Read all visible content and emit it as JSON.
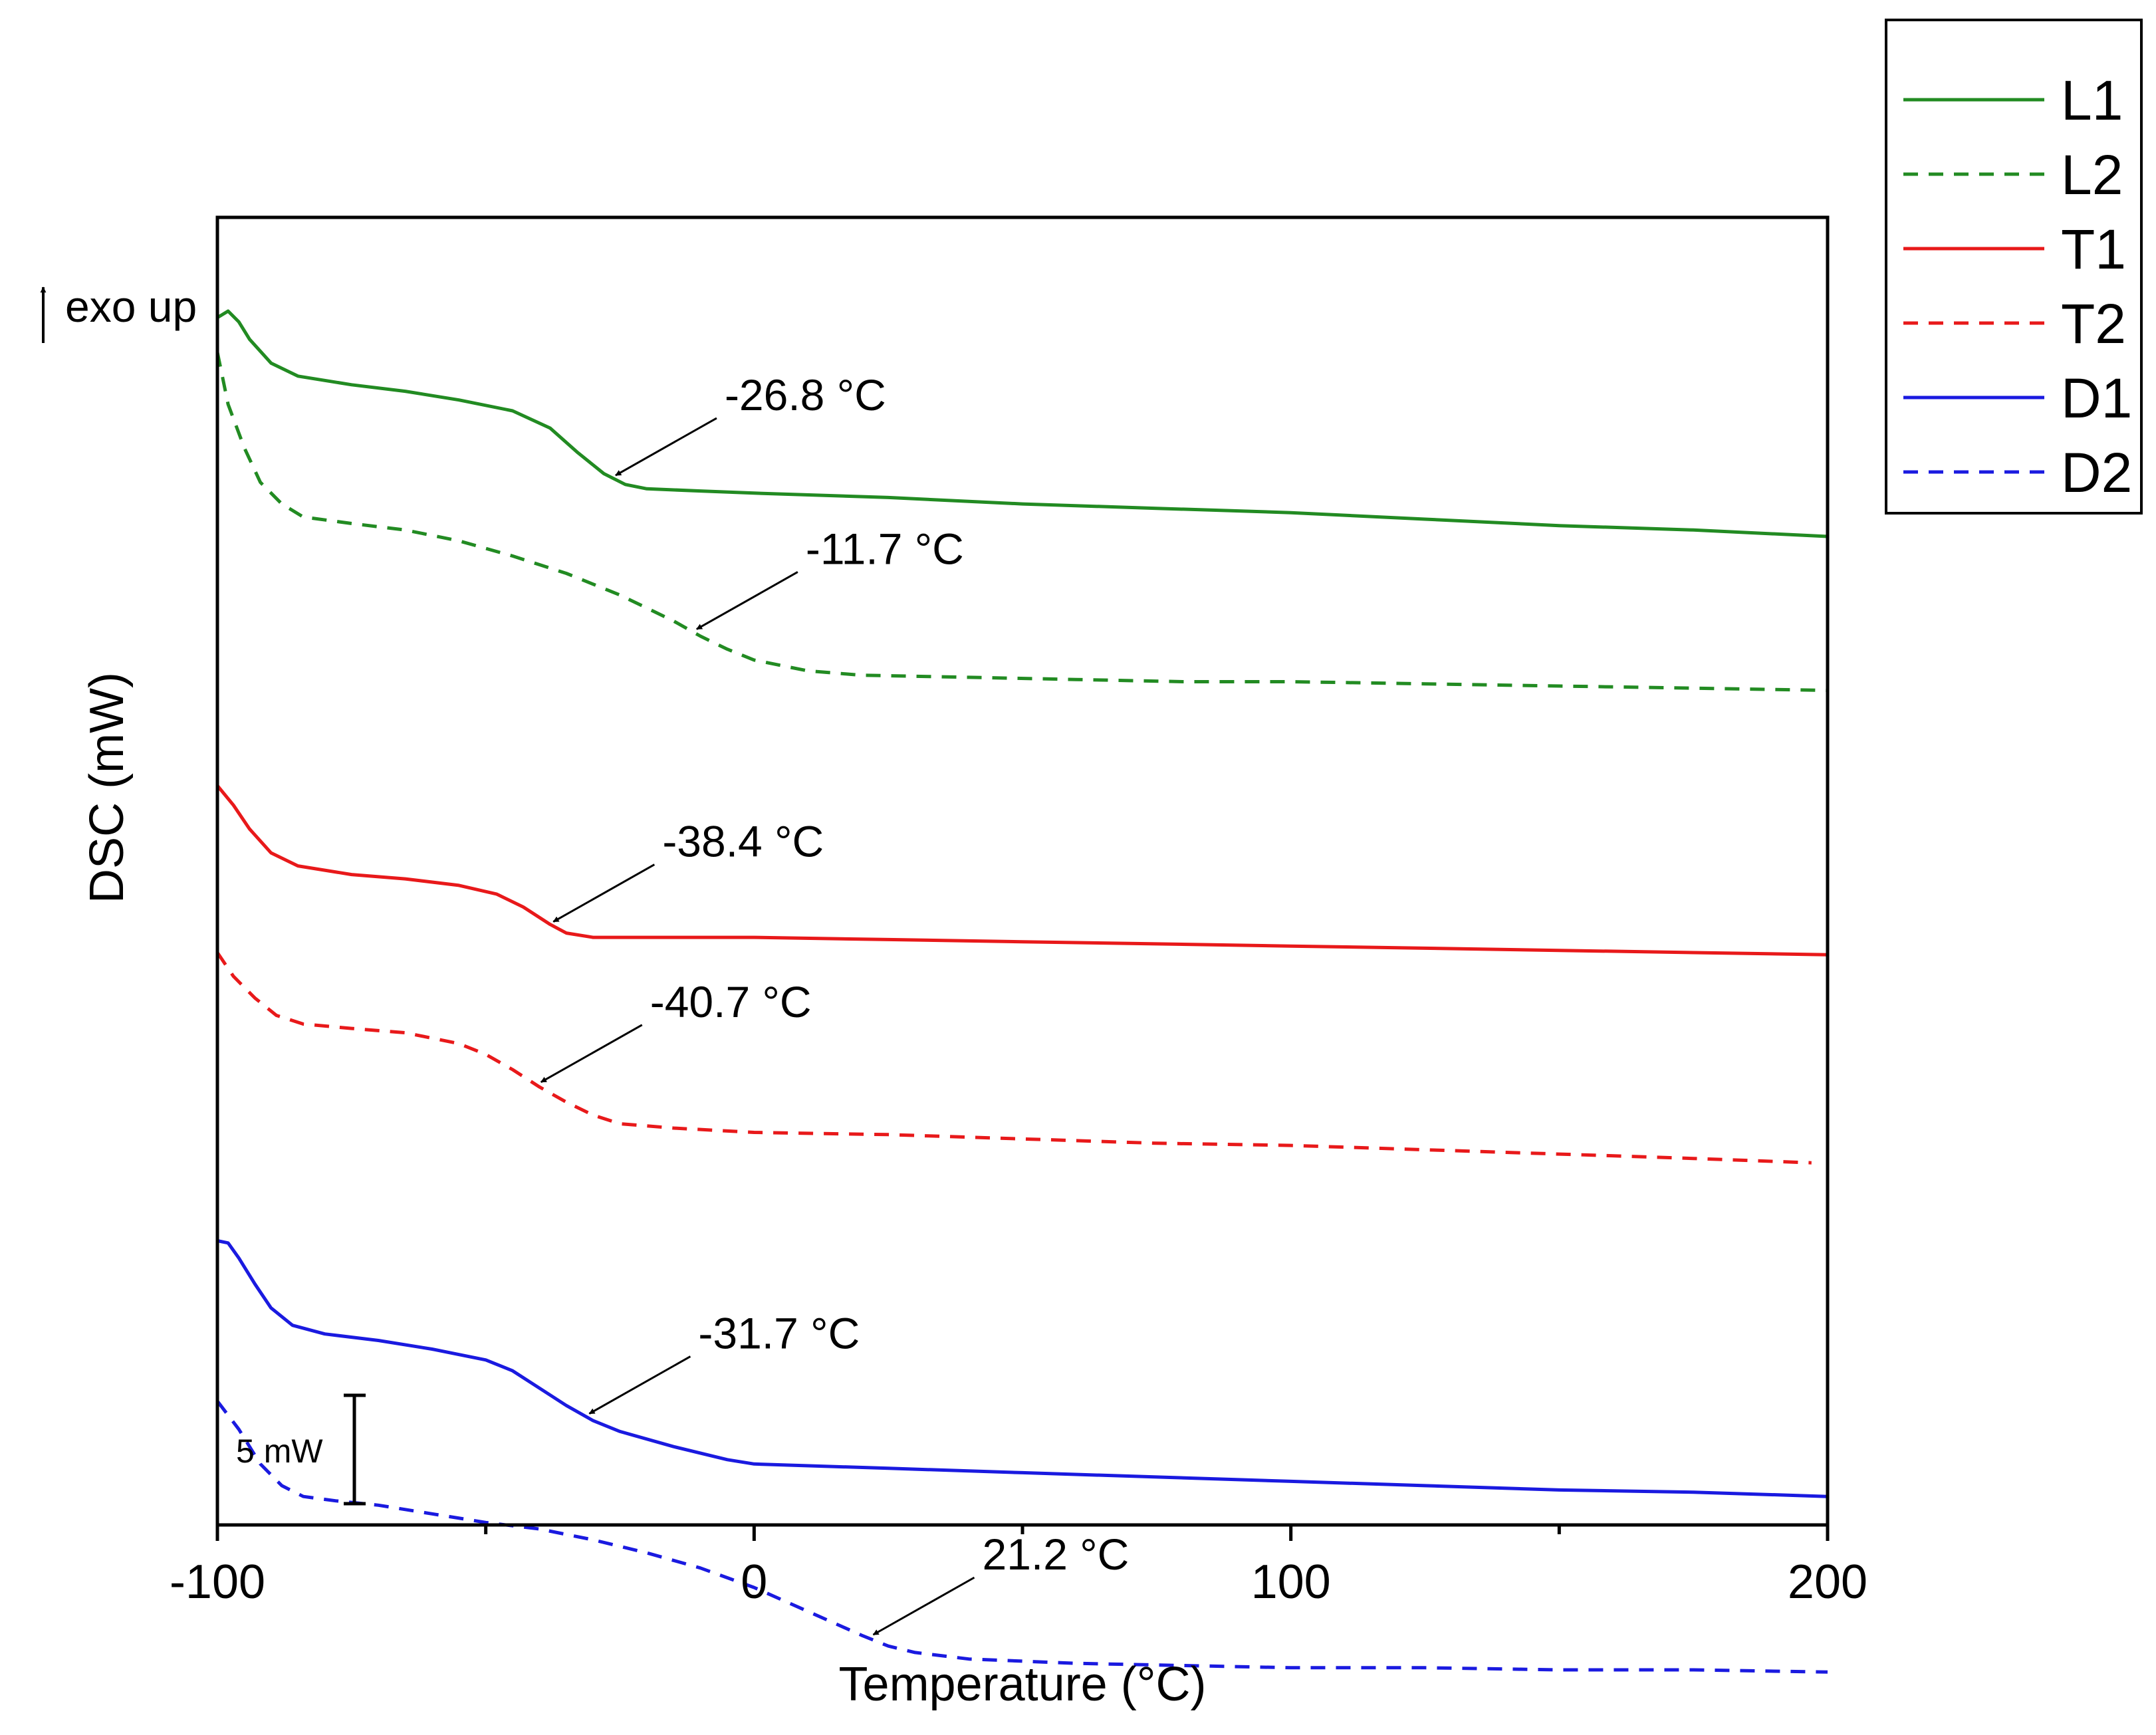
{
  "chart_data": {
    "type": "line",
    "title": "",
    "xlabel": "Temperature (°C)",
    "ylabel": "DSC (mW)",
    "xlim": [
      -100,
      200
    ],
    "x_ticks": [
      -100,
      0,
      100,
      200
    ],
    "x_minor_ticks": [
      -50,
      50,
      150
    ],
    "exo_label": "exo up",
    "scale_bar_label": "5 mW",
    "scale_bar_mw": 5,
    "legend_position": "top-right, outside plot",
    "series": [
      {
        "name": "L1",
        "color": "#228B22",
        "dashed": false,
        "points": [
          [
            -100,
            37.3
          ],
          [
            -98,
            37.6
          ],
          [
            -96,
            37.1
          ],
          [
            -94,
            36.3
          ],
          [
            -90,
            35.2
          ],
          [
            -85,
            34.6
          ],
          [
            -75,
            34.2
          ],
          [
            -65,
            33.9
          ],
          [
            -55,
            33.5
          ],
          [
            -45,
            33.0
          ],
          [
            -38,
            32.2
          ],
          [
            -33,
            31.1
          ],
          [
            -28,
            30.1
          ],
          [
            -24,
            29.6
          ],
          [
            -20,
            29.4
          ],
          [
            -10,
            29.3
          ],
          [
            0,
            29.2
          ],
          [
            25,
            29.0
          ],
          [
            50,
            28.7
          ],
          [
            75,
            28.5
          ],
          [
            100,
            28.3
          ],
          [
            125,
            28.0
          ],
          [
            150,
            27.7
          ],
          [
            175,
            27.5
          ],
          [
            200,
            27.2
          ]
        ]
      },
      {
        "name": "L2",
        "color": "#228B22",
        "dashed": true,
        "points": [
          [
            -100,
            35.7
          ],
          [
            -98,
            33.3
          ],
          [
            -95,
            31.3
          ],
          [
            -92,
            29.7
          ],
          [
            -88,
            28.7
          ],
          [
            -84,
            28.1
          ],
          [
            -75,
            27.8
          ],
          [
            -65,
            27.5
          ],
          [
            -55,
            27.0
          ],
          [
            -45,
            26.3
          ],
          [
            -35,
            25.5
          ],
          [
            -25,
            24.5
          ],
          [
            -15,
            23.3
          ],
          [
            -10,
            22.6
          ],
          [
            -5,
            22.0
          ],
          [
            0,
            21.5
          ],
          [
            10,
            21.0
          ],
          [
            20,
            20.8
          ],
          [
            40,
            20.7
          ],
          [
            60,
            20.6
          ],
          [
            80,
            20.5
          ],
          [
            100,
            20.5
          ],
          [
            125,
            20.4
          ],
          [
            150,
            20.3
          ],
          [
            175,
            20.2
          ],
          [
            200,
            20.1
          ]
        ]
      },
      {
        "name": "T1",
        "color": "#E8191A",
        "dashed": false,
        "points": [
          [
            -100,
            15.7
          ],
          [
            -97,
            14.8
          ],
          [
            -94,
            13.7
          ],
          [
            -90,
            12.6
          ],
          [
            -85,
            12.0
          ],
          [
            -75,
            11.6
          ],
          [
            -65,
            11.4
          ],
          [
            -55,
            11.1
          ],
          [
            -48,
            10.7
          ],
          [
            -43,
            10.1
          ],
          [
            -38,
            9.3
          ],
          [
            -35,
            8.9
          ],
          [
            -30,
            8.7
          ],
          [
            -20,
            8.7
          ],
          [
            0,
            8.7
          ],
          [
            25,
            8.6
          ],
          [
            50,
            8.5
          ],
          [
            75,
            8.4
          ],
          [
            100,
            8.3
          ],
          [
            125,
            8.2
          ],
          [
            150,
            8.1
          ],
          [
            175,
            8.0
          ],
          [
            200,
            7.9
          ]
        ]
      },
      {
        "name": "T2",
        "color": "#E8191A",
        "dashed": true,
        "points": [
          [
            -100,
            8.0
          ],
          [
            -97,
            6.9
          ],
          [
            -93,
            5.9
          ],
          [
            -89,
            5.1
          ],
          [
            -84,
            4.7
          ],
          [
            -75,
            4.5
          ],
          [
            -65,
            4.3
          ],
          [
            -55,
            3.8
          ],
          [
            -50,
            3.3
          ],
          [
            -45,
            2.6
          ],
          [
            -40,
            1.8
          ],
          [
            -35,
            1.1
          ],
          [
            -30,
            0.5
          ],
          [
            -25,
            0.1
          ],
          [
            -15,
            -0.1
          ],
          [
            0,
            -0.3
          ],
          [
            25,
            -0.4
          ],
          [
            50,
            -0.6
          ],
          [
            75,
            -0.8
          ],
          [
            100,
            -0.9
          ],
          [
            125,
            -1.1
          ],
          [
            150,
            -1.3
          ],
          [
            175,
            -1.5
          ],
          [
            197,
            -1.7
          ]
        ]
      },
      {
        "name": "D1",
        "color": "#1A1AE0",
        "dashed": false,
        "points": [
          [
            -100,
            -5.3
          ],
          [
            -98,
            -5.4
          ],
          [
            -96,
            -6.1
          ],
          [
            -93,
            -7.3
          ],
          [
            -90,
            -8.4
          ],
          [
            -86,
            -9.2
          ],
          [
            -80,
            -9.6
          ],
          [
            -70,
            -9.9
          ],
          [
            -60,
            -10.3
          ],
          [
            -50,
            -10.8
          ],
          [
            -45,
            -11.3
          ],
          [
            -40,
            -12.1
          ],
          [
            -35,
            -12.9
          ],
          [
            -30,
            -13.6
          ],
          [
            -25,
            -14.1
          ],
          [
            -15,
            -14.8
          ],
          [
            -5,
            -15.4
          ],
          [
            0,
            -15.6
          ],
          [
            25,
            -15.8
          ],
          [
            50,
            -16.0
          ],
          [
            75,
            -16.2
          ],
          [
            100,
            -16.4
          ],
          [
            125,
            -16.6
          ],
          [
            150,
            -16.8
          ],
          [
            175,
            -16.9
          ],
          [
            200,
            -17.1
          ]
        ]
      },
      {
        "name": "D2",
        "color": "#1A1AE0",
        "dashed": true,
        "points": [
          [
            -100,
            -12.7
          ],
          [
            -96,
            -14.0
          ],
          [
            -92,
            -15.6
          ],
          [
            -88,
            -16.6
          ],
          [
            -84,
            -17.1
          ],
          [
            -78,
            -17.3
          ],
          [
            -70,
            -17.5
          ],
          [
            -60,
            -17.9
          ],
          [
            -50,
            -18.3
          ],
          [
            -40,
            -18.6
          ],
          [
            -30,
            -19.1
          ],
          [
            -20,
            -19.7
          ],
          [
            -10,
            -20.4
          ],
          [
            0,
            -21.3
          ],
          [
            10,
            -22.4
          ],
          [
            20,
            -23.5
          ],
          [
            25,
            -24.0
          ],
          [
            30,
            -24.3
          ],
          [
            40,
            -24.6
          ],
          [
            60,
            -24.8
          ],
          [
            80,
            -24.9
          ],
          [
            100,
            -25.0
          ],
          [
            125,
            -25.0
          ],
          [
            150,
            -25.1
          ],
          [
            175,
            -25.1
          ],
          [
            200,
            -25.2
          ]
        ]
      }
    ],
    "annotations": [
      {
        "series": "L1",
        "text": "-26.8 °C",
        "x": -26.8,
        "y": 29.9
      },
      {
        "series": "L2",
        "text": "-11.7 °C",
        "x": -11.7,
        "y": 22.8
      },
      {
        "series": "T1",
        "text": "-38.4 °C",
        "x": -38.4,
        "y": 9.3
      },
      {
        "series": "T2",
        "text": "-40.7 °C",
        "x": -40.7,
        "y": 1.9
      },
      {
        "series": "D1",
        "text": "-31.7 °C",
        "x": -31.7,
        "y": -13.4
      },
      {
        "series": "D2",
        "text": "21.2 °C",
        "x": 21.2,
        "y": -23.6
      }
    ]
  }
}
